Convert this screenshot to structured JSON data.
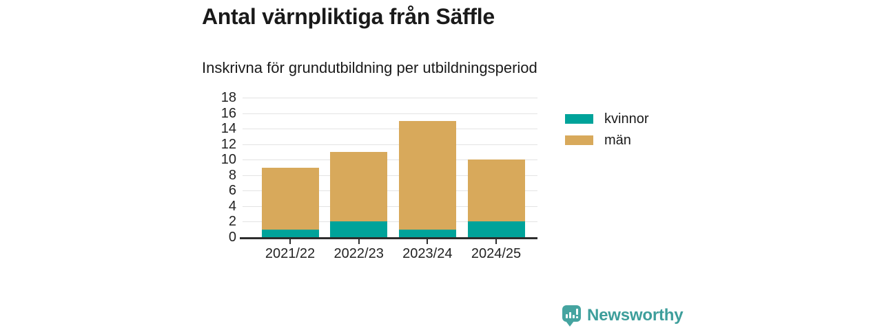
{
  "header": {
    "title": "Antal värnpliktiga från Säffle",
    "subtitle": "Inskrivna för grundutbildning per utbildningsperiod"
  },
  "chart_data": {
    "type": "bar",
    "stacked": true,
    "title": "Antal värnpliktiga från Säffle",
    "subtitle": "Inskrivna för grundutbildning per utbildningsperiod",
    "categories": [
      "2021/22",
      "2022/23",
      "2023/24",
      "2024/25"
    ],
    "series": [
      {
        "name": "kvinnor",
        "color": "#00a39a",
        "values": [
          1,
          2,
          1,
          2
        ]
      },
      {
        "name": "män",
        "color": "#d8a95b",
        "values": [
          8,
          9,
          14,
          8
        ]
      }
    ],
    "stacked_totals": [
      9,
      11,
      15,
      10
    ],
    "xlabel": "",
    "ylabel": "",
    "ylim": [
      0,
      18
    ],
    "yticks": [
      0,
      2,
      4,
      6,
      8,
      10,
      12,
      14,
      16,
      18
    ],
    "grid": true,
    "legend_position": "right"
  },
  "legend": {
    "items": [
      {
        "label": "kvinnor",
        "color": "#00a39a"
      },
      {
        "label": "män",
        "color": "#d8a95b"
      }
    ]
  },
  "branding": {
    "name": "Newsworthy",
    "icon": "bar-chart-speech-bubble-icon",
    "icon_color": "#45a4a0",
    "text_color": "#3d9e9b"
  },
  "style_colors": {
    "background": "#ffffff",
    "text": "#1a1a1a",
    "axis": "#2d2d2d",
    "gridline": "#e3e3e3"
  }
}
